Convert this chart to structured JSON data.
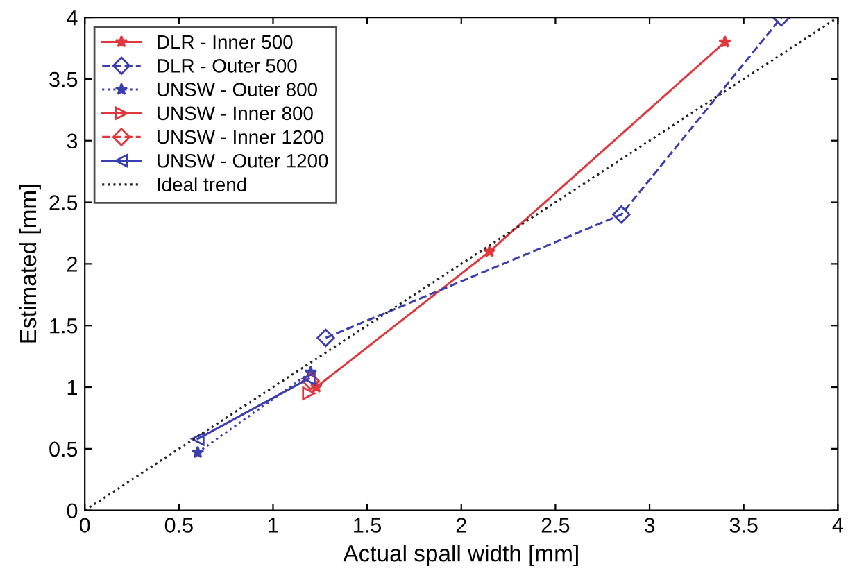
{
  "chart_data": {
    "type": "line",
    "xlabel": "Actual spall width [mm]",
    "ylabel": "Estimated [mm]",
    "xlim": [
      0,
      4
    ],
    "ylim": [
      0,
      4
    ],
    "xticks": [
      0,
      0.5,
      1,
      1.5,
      2,
      2.5,
      3,
      3.5,
      4
    ],
    "yticks": [
      0,
      0.5,
      1,
      1.5,
      2,
      2.5,
      3,
      3.5,
      4
    ],
    "grid": false,
    "legend": "top left",
    "series": [
      {
        "name": "DLR - Inner 500",
        "color": "#e0383c",
        "marker": "star",
        "line_style": "solid",
        "x": [
          1.23,
          2.15,
          3.4
        ],
        "values": [
          1.0,
          2.1,
          3.8
        ]
      },
      {
        "name": "DLR - Outer 500",
        "color": "#3a3fb0",
        "marker": "diamond",
        "line_style": "dashed",
        "x": [
          1.28,
          2.85,
          3.7
        ],
        "values": [
          1.4,
          2.4,
          4.0
        ]
      },
      {
        "name": "UNSW - Outer 800",
        "color": "#3a3fb0",
        "marker": "star",
        "line_style": "dotted",
        "x": [
          0.6,
          1.2
        ],
        "values": [
          0.47,
          1.12
        ]
      },
      {
        "name": "UNSW - Inner 800",
        "color": "#e0383c",
        "marker": "triangle_right",
        "line_style": "solid",
        "x": [
          1.19
        ],
        "values": [
          0.95
        ]
      },
      {
        "name": "UNSW - Inner 1200",
        "color": "#e0383c",
        "marker": "diamond",
        "line_style": "dashed",
        "x": [
          1.2
        ],
        "values": [
          1.05
        ]
      },
      {
        "name": "UNSW - Outer 1200",
        "color": "#3a3fb0",
        "marker": "triangle_left",
        "line_style": "solid",
        "x": [
          0.6,
          1.19
        ],
        "values": [
          0.58,
          1.07
        ]
      },
      {
        "name": "Ideal trend",
        "color": "#222222",
        "marker": "none",
        "line_style": "dotted",
        "x": [
          0,
          4
        ],
        "values": [
          0,
          4
        ]
      }
    ]
  }
}
